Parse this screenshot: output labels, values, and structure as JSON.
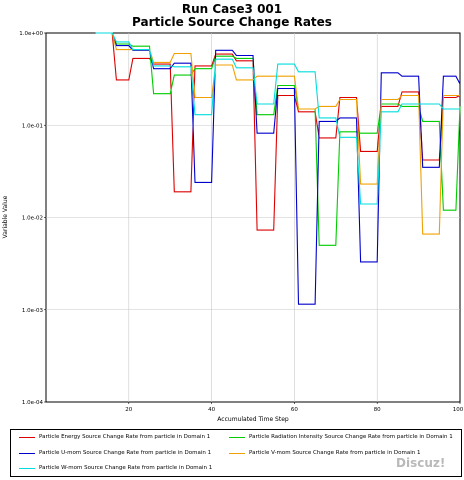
{
  "chart_data": {
    "type": "line",
    "title": "Run Case3 001",
    "subtitle": "Particle Source Change Rates",
    "xlabel": "Accumulated Time Step",
    "ylabel": "Variable Value",
    "xlim": [
      0,
      100
    ],
    "x_ticks": [
      "20",
      "40",
      "60",
      "80",
      "100"
    ],
    "y_scale": "log",
    "ylim": [
      0.0001,
      1.0
    ],
    "y_ticks": [
      "1.0e+00",
      "1.0e-01",
      "1.0e-02",
      "1.0e-03",
      "1.0e-04"
    ],
    "grid": true,
    "legend_position": "bottom",
    "series": [
      {
        "name": "Particle Energy Source Change Rate from particle in Domain 1",
        "color": "#dd0000",
        "points": [
          [
            12,
            1.0
          ],
          [
            16,
            1.0
          ],
          [
            17,
            0.31
          ],
          [
            20,
            0.31
          ],
          [
            21,
            0.53
          ],
          [
            25,
            0.53
          ],
          [
            26,
            0.46
          ],
          [
            30,
            0.46
          ],
          [
            31,
            0.019
          ],
          [
            35,
            0.019
          ],
          [
            36,
            0.44
          ],
          [
            40,
            0.44
          ],
          [
            41,
            0.59
          ],
          [
            45,
            0.59
          ],
          [
            46,
            0.5
          ],
          [
            50,
            0.5
          ],
          [
            51,
            0.0073
          ],
          [
            55,
            0.0073
          ],
          [
            56,
            0.21
          ],
          [
            60,
            0.21
          ],
          [
            61,
            0.14
          ],
          [
            65,
            0.14
          ],
          [
            66,
            0.073
          ],
          [
            70,
            0.073
          ],
          [
            71,
            0.2
          ],
          [
            75,
            0.2
          ],
          [
            76,
            0.052
          ],
          [
            80,
            0.052
          ],
          [
            81,
            0.16
          ],
          [
            85,
            0.16
          ],
          [
            86,
            0.23
          ],
          [
            90,
            0.23
          ],
          [
            91,
            0.042
          ],
          [
            95,
            0.042
          ],
          [
            96,
            0.2
          ],
          [
            99,
            0.2
          ],
          [
            100,
            0.21
          ]
        ]
      },
      {
        "name": "Particle Radiation Intensity Source Change Rate from particle in Domain 1",
        "color": "#00cc00",
        "points": [
          [
            12,
            1.0
          ],
          [
            16,
            1.0
          ],
          [
            17,
            0.76
          ],
          [
            20,
            0.76
          ],
          [
            21,
            0.72
          ],
          [
            25,
            0.72
          ],
          [
            26,
            0.22
          ],
          [
            30,
            0.22
          ],
          [
            31,
            0.35
          ],
          [
            35,
            0.35
          ],
          [
            36,
            0.41
          ],
          [
            40,
            0.41
          ],
          [
            41,
            0.56
          ],
          [
            45,
            0.56
          ],
          [
            46,
            0.53
          ],
          [
            50,
            0.53
          ],
          [
            51,
            0.13
          ],
          [
            55,
            0.13
          ],
          [
            56,
            0.27
          ],
          [
            60,
            0.27
          ],
          [
            61,
            0.15
          ],
          [
            65,
            0.15
          ],
          [
            66,
            0.005
          ],
          [
            70,
            0.005
          ],
          [
            71,
            0.085
          ],
          [
            75,
            0.085
          ],
          [
            76,
            0.082
          ],
          [
            80,
            0.082
          ],
          [
            81,
            0.17
          ],
          [
            85,
            0.17
          ],
          [
            86,
            0.16
          ],
          [
            90,
            0.16
          ],
          [
            91,
            0.11
          ],
          [
            95,
            0.11
          ],
          [
            96,
            0.012
          ],
          [
            99,
            0.012
          ],
          [
            100,
            0.16
          ]
        ]
      },
      {
        "name": "Particle U-mom Source Change Rate from particle in Domain 1",
        "color": "#0000cc",
        "points": [
          [
            12,
            1.0
          ],
          [
            16,
            1.0
          ],
          [
            17,
            0.73
          ],
          [
            20,
            0.73
          ],
          [
            21,
            0.65
          ],
          [
            25,
            0.65
          ],
          [
            26,
            0.41
          ],
          [
            30,
            0.41
          ],
          [
            31,
            0.47
          ],
          [
            35,
            0.47
          ],
          [
            36,
            0.024
          ],
          [
            40,
            0.024
          ],
          [
            41,
            0.65
          ],
          [
            45,
            0.65
          ],
          [
            46,
            0.57
          ],
          [
            50,
            0.57
          ],
          [
            51,
            0.082
          ],
          [
            55,
            0.082
          ],
          [
            56,
            0.25
          ],
          [
            60,
            0.25
          ],
          [
            61,
            0.00115
          ],
          [
            65,
            0.00115
          ],
          [
            66,
            0.11
          ],
          [
            70,
            0.11
          ],
          [
            71,
            0.12
          ],
          [
            75,
            0.12
          ],
          [
            76,
            0.0033
          ],
          [
            80,
            0.0033
          ],
          [
            81,
            0.37
          ],
          [
            85,
            0.37
          ],
          [
            86,
            0.34
          ],
          [
            90,
            0.34
          ],
          [
            91,
            0.035
          ],
          [
            95,
            0.035
          ],
          [
            96,
            0.34
          ],
          [
            99,
            0.34
          ],
          [
            100,
            0.28
          ]
        ]
      },
      {
        "name": "Particle V-mom Source Change Rate from particle in Domain 1",
        "color": "#f0a000",
        "points": [
          [
            12,
            1.0
          ],
          [
            16,
            1.0
          ],
          [
            17,
            0.66
          ],
          [
            20,
            0.66
          ],
          [
            21,
            0.66
          ],
          [
            25,
            0.66
          ],
          [
            26,
            0.48
          ],
          [
            30,
            0.48
          ],
          [
            31,
            0.6
          ],
          [
            35,
            0.6
          ],
          [
            36,
            0.2
          ],
          [
            40,
            0.2
          ],
          [
            41,
            0.45
          ],
          [
            45,
            0.45
          ],
          [
            46,
            0.31
          ],
          [
            50,
            0.31
          ],
          [
            51,
            0.34
          ],
          [
            55,
            0.34
          ],
          [
            56,
            0.34
          ],
          [
            60,
            0.34
          ],
          [
            61,
            0.15
          ],
          [
            65,
            0.15
          ],
          [
            66,
            0.16
          ],
          [
            70,
            0.16
          ],
          [
            71,
            0.19
          ],
          [
            75,
            0.19
          ],
          [
            76,
            0.023
          ],
          [
            80,
            0.023
          ],
          [
            81,
            0.19
          ],
          [
            85,
            0.19
          ],
          [
            86,
            0.21
          ],
          [
            90,
            0.21
          ],
          [
            91,
            0.0066
          ],
          [
            95,
            0.0066
          ],
          [
            96,
            0.21
          ],
          [
            99,
            0.21
          ],
          [
            100,
            0.21
          ]
        ]
      },
      {
        "name": "Particle W-mom Source Change Rate from particle in Domain 1",
        "color": "#00dddd",
        "points": [
          [
            12,
            1.0
          ],
          [
            16,
            1.0
          ],
          [
            17,
            0.8
          ],
          [
            20,
            0.8
          ],
          [
            21,
            0.66
          ],
          [
            25,
            0.66
          ],
          [
            26,
            0.44
          ],
          [
            30,
            0.44
          ],
          [
            31,
            0.43
          ],
          [
            35,
            0.43
          ],
          [
            36,
            0.13
          ],
          [
            40,
            0.13
          ],
          [
            41,
            0.52
          ],
          [
            45,
            0.52
          ],
          [
            46,
            0.42
          ],
          [
            50,
            0.42
          ],
          [
            51,
            0.17
          ],
          [
            55,
            0.17
          ],
          [
            56,
            0.46
          ],
          [
            60,
            0.46
          ],
          [
            61,
            0.38
          ],
          [
            65,
            0.38
          ],
          [
            66,
            0.12
          ],
          [
            70,
            0.12
          ],
          [
            71,
            0.074
          ],
          [
            75,
            0.074
          ],
          [
            76,
            0.014
          ],
          [
            80,
            0.014
          ],
          [
            81,
            0.14
          ],
          [
            85,
            0.14
          ],
          [
            86,
            0.17
          ],
          [
            90,
            0.17
          ],
          [
            91,
            0.17
          ],
          [
            95,
            0.17
          ],
          [
            96,
            0.15
          ],
          [
            99,
            0.15
          ],
          [
            100,
            0.15
          ]
        ]
      }
    ]
  },
  "watermark": "Discuz!"
}
